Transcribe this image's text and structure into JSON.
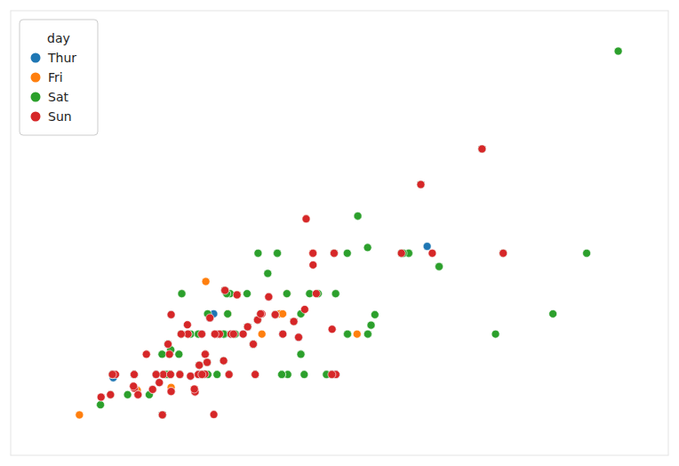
{
  "chart_data": {
    "type": "scatter",
    "legend_title": "day",
    "legend": "upper left",
    "tick_labels": false,
    "xlim": [
      0,
      55
    ],
    "ylim": [
      0,
      11
    ],
    "series": [
      {
        "name": "Thur",
        "color": "#1f77b4",
        "x": [
          27.2,
          22.76,
          17.29,
          19.44,
          16.66,
          32.68,
          15.98,
          13.42,
          16.27,
          15.42,
          18.43,
          14.83,
          21.58,
          10.65,
          12.43,
          24.08,
          11.87,
          15.69,
          12.16,
          13.42,
          8.58,
          15.04,
          34.83,
          10.33,
          16.98,
          20.65,
          17.92,
          20.29,
          15.77,
          39.42,
          19.82,
          17.81,
          13.37,
          12.69,
          14.26,
          16.24,
          20.45,
          13.28,
          22.12,
          17.07,
          26.86,
          18.26,
          8.51,
          10.33,
          14.15,
          16.0,
          13.16,
          17.47,
          34.3
        ],
        "values": [
          2.0,
          3.0,
          3.0,
          3.0,
          3.4,
          5.0,
          3.0,
          3.48,
          2.5,
          1.57,
          3.0,
          3.0,
          3.92,
          1.5,
          1.8,
          2.92,
          1.63,
          2.0,
          2.0,
          1.58,
          1.92,
          1.96,
          5.17,
          2.0,
          3.5,
          3.35,
          4.08,
          2.75,
          2.23,
          7.58,
          3.18,
          2.34,
          2.0,
          1.0,
          3.0,
          2.01,
          2.0,
          2.5,
          3.48,
          3.0,
          2.0,
          2.0,
          2.0,
          2.0,
          2.0,
          2.0,
          2.75,
          3.0,
          6.7
        ]
      },
      {
        "name": "Fri",
        "color": "#ff7f0e",
        "x": [
          28.97,
          22.49,
          5.75,
          16.32,
          22.75,
          11.35,
          15.36,
          18.93,
          25.28,
          17.08,
          24.71,
          21.01,
          14.31,
          18.7,
          10.59,
          13.42,
          16.27,
          18.15,
          23.1
        ],
        "values": [
          3.0,
          3.5,
          1.0,
          4.3,
          3.5,
          2.5,
          1.64,
          3.97,
          5.0,
          3.0,
          5.85,
          3.0,
          4.0,
          3.0,
          1.61,
          1.68,
          2.5,
          3.5,
          4.0
        ]
      },
      {
        "name": "Sat",
        "color": "#2ca02c",
        "x": [
          20.65,
          17.92,
          20.29,
          15.77,
          39.42,
          19.82,
          17.81,
          13.37,
          12.69,
          14.26,
          16.24,
          20.45,
          13.28,
          22.12,
          17.07,
          26.86,
          18.26,
          8.51,
          10.33,
          14.15,
          16.0,
          13.16,
          17.47,
          34.3,
          41.19,
          27.05,
          16.43,
          8.35,
          18.64,
          11.87,
          9.78,
          7.51,
          14.07,
          13.13,
          17.26,
          24.55,
          19.77,
          29.85,
          48.17,
          25.0,
          13.39,
          16.49,
          21.5,
          12.66,
          18.35,
          15.06,
          20.69,
          17.78,
          24.27,
          45.35,
          23.17,
          40.55,
          20.9,
          30.46,
          18.15,
          23.1,
          11.59,
          16.47,
          17.89,
          13.0,
          29.03,
          27.18,
          22.67,
          17.82,
          18.78,
          24.27,
          33.29,
          28.17,
          28.15,
          23.68,
          14.31,
          30.14,
          32.68,
          26.41,
          22.3,
          15.69,
          25.71,
          29.87,
          18.07,
          32.83,
          35.83,
          29.03,
          27.18,
          22.67,
          17.82,
          18.78,
          24.27,
          33.29,
          28.17,
          50.81,
          23.68,
          14.31,
          30.14,
          32.68,
          26.41,
          22.3,
          15.69,
          25.71,
          29.87,
          18.07,
          32.83,
          35.83
        ],
        "values": [
          3.35,
          4.08,
          2.75,
          2.23,
          7.58,
          3.18,
          2.34,
          2.0,
          1.0,
          3.0,
          2.01,
          2.0,
          2.5,
          3.48,
          3.0,
          2.0,
          2.0,
          2.0,
          2.0,
          2.0,
          2.0,
          2.75,
          3.0,
          6.7,
          5.0,
          5.0,
          2.3,
          1.5,
          3.0,
          1.63,
          1.5,
          1.25,
          2.5,
          2.0,
          2.0,
          2.0,
          4.0,
          5.14,
          5.0,
          4.0,
          2.61,
          2.0,
          4.5,
          2.5,
          4.0,
          3.0,
          5.0,
          3.0,
          3.5,
          3.5,
          2.0,
          3.0,
          3.5,
          3.48,
          3.5,
          4.0,
          1.5,
          3.5,
          3.0,
          2.0,
          5.92,
          4.0,
          2.0,
          3.0,
          3.0,
          2.5,
          5.0,
          3.0,
          5.0,
          3.31,
          4.0,
          3.22,
          5.0,
          2.0,
          5.0,
          3.0,
          4.0,
          3.0,
          4.0,
          5.0,
          4.67,
          5.92,
          4.0,
          2.0,
          3.0,
          3.0,
          2.5,
          5.0,
          3.0,
          10.0,
          3.31,
          4.0,
          3.22,
          5.0,
          2.0,
          5.0,
          3.0,
          4.0,
          3.0,
          4.0,
          5.0,
          4.67
        ]
      },
      {
        "name": "Sun",
        "color": "#d62728",
        "x": [
          16.99,
          10.34,
          21.01,
          23.68,
          24.59,
          25.29,
          8.77,
          26.88,
          15.04,
          14.78,
          10.27,
          35.26,
          15.42,
          18.43,
          21.58,
          10.65,
          12.76,
          13.42,
          14.83,
          7.56,
          27.2,
          22.76,
          17.29,
          19.44,
          16.66,
          32.68,
          15.98,
          13.42,
          16.27,
          15.42,
          14.83,
          21.58,
          10.65,
          12.43,
          24.08,
          11.87,
          15.69,
          12.16,
          13.42,
          20.65,
          17.92,
          20.29,
          15.77,
          39.42,
          19.82,
          17.81,
          13.37,
          12.69,
          14.26,
          16.24,
          20.45,
          13.28,
          22.12,
          17.07,
          26.86,
          18.26,
          8.51,
          10.33,
          14.15,
          16.0,
          13.16,
          17.47,
          34.3,
          41.19,
          27.05,
          16.43,
          8.35,
          18.64,
          11.87,
          20.9,
          25.56,
          11.35,
          15.36,
          18.93,
          25.28,
          17.08,
          24.71
        ],
        "values": [
          1.01,
          1.66,
          3.5,
          3.31,
          3.61,
          4.71,
          2.0,
          3.12,
          1.96,
          3.23,
          1.71,
          5.0,
          1.57,
          3.0,
          3.92,
          1.5,
          2.0,
          1.58,
          3.0,
          1.44,
          2.0,
          3.0,
          3.0,
          3.0,
          3.4,
          5.0,
          3.0,
          3.48,
          2.5,
          1.57,
          3.0,
          3.92,
          1.5,
          1.8,
          2.92,
          1.63,
          2.0,
          2.0,
          1.58,
          3.35,
          4.08,
          2.75,
          2.23,
          7.58,
          3.18,
          2.34,
          2.0,
          1.0,
          3.0,
          2.01,
          2.0,
          2.5,
          3.48,
          3.0,
          2.0,
          2.0,
          2.0,
          2.0,
          2.0,
          2.0,
          2.75,
          3.0,
          6.7,
          5.0,
          5.0,
          2.3,
          1.5,
          3.0,
          1.63,
          3.5,
          4.0,
          2.5,
          1.64,
          3.97,
          5.0,
          3.0,
          5.85
        ]
      }
    ]
  }
}
